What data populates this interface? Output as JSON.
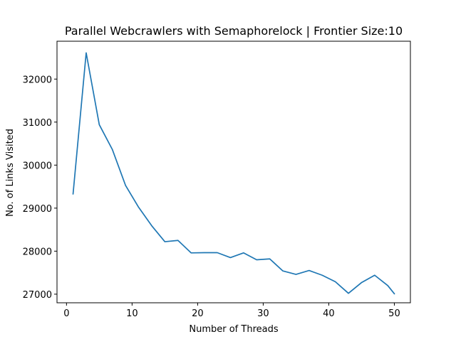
{
  "chart_data": {
    "type": "line",
    "title": "Parallel Webcrawlers with Semaphorelock | Frontier Size:10",
    "xlabel": "Number of Threads",
    "ylabel": "No. of Links Visited",
    "xlim": [
      -1.45,
      52.45
    ],
    "ylim": [
      26800,
      32880
    ],
    "grid": false,
    "line_color": "#1f77b4",
    "x_ticks": [
      0,
      10,
      20,
      30,
      40,
      50
    ],
    "y_ticks": [
      27000,
      28000,
      29000,
      30000,
      31000,
      32000
    ],
    "x_tick_labels": [
      "0",
      "10",
      "20",
      "30",
      "40",
      "50"
    ],
    "y_tick_labels": [
      "27000",
      "28000",
      "29000",
      "30000",
      "31000",
      "32000"
    ],
    "series": [
      {
        "x": [
          1,
          3,
          5,
          7,
          9,
          11,
          13,
          15,
          17,
          19,
          21,
          23,
          25,
          27,
          29,
          31,
          33,
          35,
          37,
          39,
          41,
          43,
          45,
          47,
          49,
          50
        ],
        "values": [
          29330,
          32610,
          30940,
          30360,
          29530,
          29020,
          28590,
          28220,
          28250,
          27960,
          27965,
          27965,
          27850,
          27960,
          27800,
          27820,
          27540,
          27460,
          27550,
          27440,
          27290,
          27020,
          27270,
          27440,
          27200,
          27010
        ]
      }
    ]
  }
}
